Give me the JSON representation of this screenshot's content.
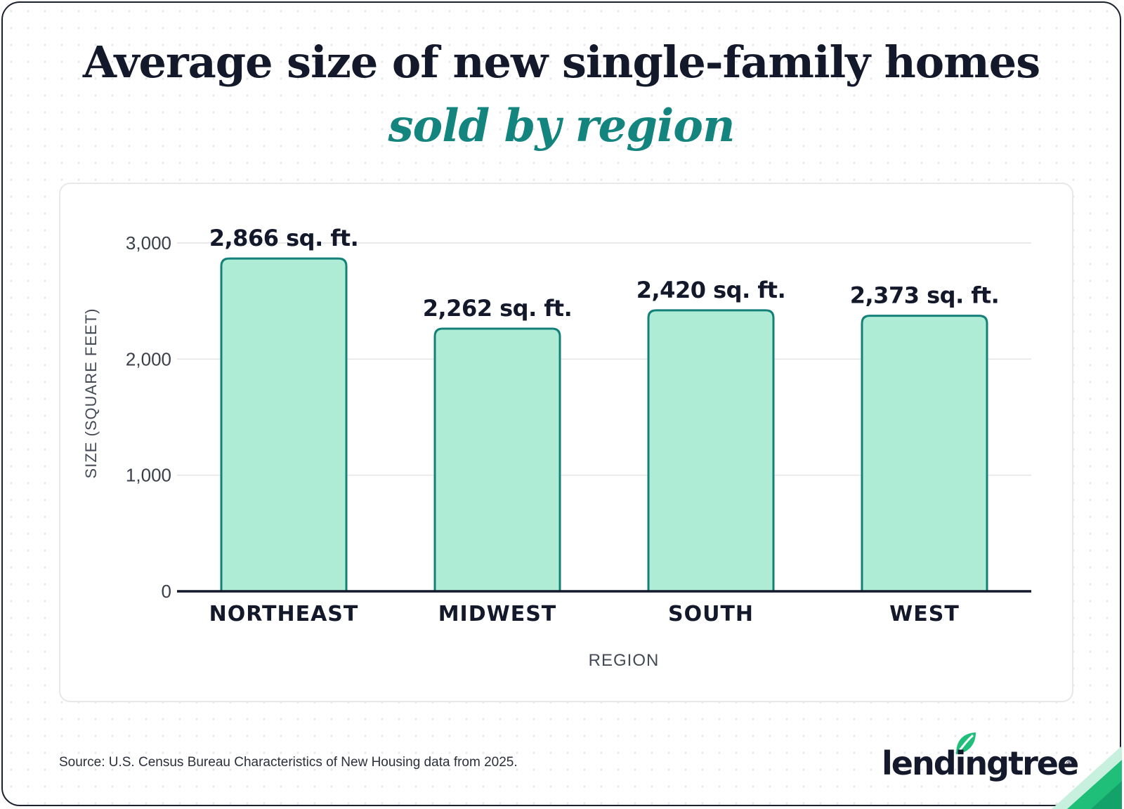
{
  "title": "Average size of new single-family homes",
  "subtitle": "sold by region",
  "source": "Source: U.S. Census Bureau Characteristics of New Housing data from 2025.",
  "brand": {
    "name": "lendingtree",
    "trademark": "®"
  },
  "colors": {
    "bar_fill": "#aeecd5",
    "bar_stroke": "#14807a",
    "title": "#13192b",
    "subtitle": "#14847e",
    "gridline": "#e4e4e4",
    "axis": "#14192b",
    "accent_green": "#1fbf7a"
  },
  "chart_data": {
    "type": "bar",
    "categories": [
      "NORTHEAST",
      "MIDWEST",
      "SOUTH",
      "WEST"
    ],
    "values": [
      2866,
      2262,
      2420,
      2373
    ],
    "data_labels": [
      "2,866 sq. ft.",
      "2,262 sq. ft.",
      "2,420 sq. ft.",
      "2,373 sq. ft."
    ],
    "xlabel": "REGION",
    "ylabel": "SIZE (SQUARE FEET)",
    "ylim": [
      0,
      3000
    ],
    "yticks": [
      0,
      1000,
      2000,
      3000
    ],
    "ytick_labels": [
      "0",
      "1,000",
      "2,000",
      "3,000"
    ],
    "grid": true
  }
}
